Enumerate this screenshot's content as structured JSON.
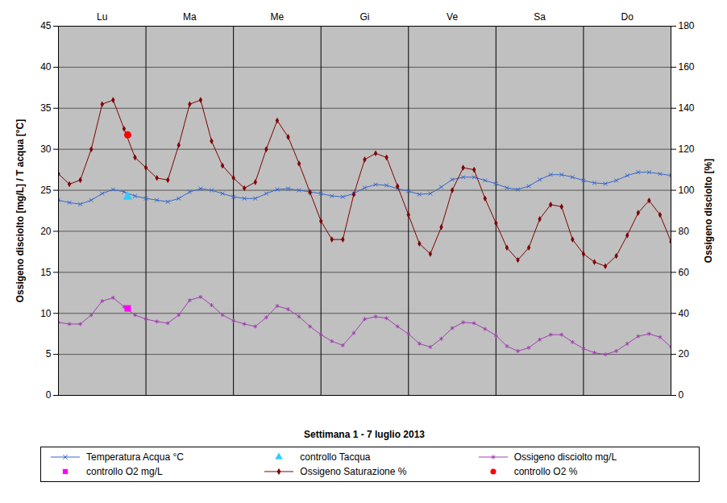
{
  "chart_data": {
    "type": "line",
    "x_label": "Settimana  1 - 7  luglio 2013",
    "y_label": "Ossigeno disciolto [mg/L] / T acqua [°C]",
    "y2_label": "Ossigeno disciolto [%]",
    "x": [
      0,
      3,
      6,
      9,
      12,
      15,
      18,
      21,
      24,
      27,
      30,
      33,
      36,
      39,
      42,
      45,
      48,
      51,
      54,
      57,
      60,
      63,
      66,
      69,
      72,
      75,
      78,
      81,
      84,
      87,
      90,
      93,
      96,
      99,
      102,
      105,
      108,
      111,
      114,
      117,
      120,
      123,
      126,
      129,
      132,
      135,
      138,
      141,
      144,
      147,
      150,
      153,
      156,
      159,
      162,
      165,
      168
    ],
    "xlim": [
      0,
      168
    ],
    "xticks": [
      {
        "value": 12,
        "label": "Lu"
      },
      {
        "value": 36,
        "label": "Ma"
      },
      {
        "value": 60,
        "label": "Me"
      },
      {
        "value": 84,
        "label": "Gi"
      },
      {
        "value": 108,
        "label": "Ve"
      },
      {
        "value": 132,
        "label": "Sa"
      },
      {
        "value": 156,
        "label": "Do"
      }
    ],
    "ylim": [
      0,
      45
    ],
    "yticks": [
      0,
      5,
      10,
      15,
      20,
      25,
      30,
      35,
      40,
      45
    ],
    "y2lim": [
      0,
      180
    ],
    "y2ticks": [
      0,
      20,
      40,
      60,
      80,
      100,
      120,
      140,
      160,
      180
    ],
    "grid": true,
    "legend": "bottom",
    "series": [
      {
        "name": "Temperatura Acqua °C",
        "type": "line",
        "color": "#3366cc",
        "marker": "x",
        "values": [
          23.8,
          23.5,
          23.3,
          23.8,
          24.6,
          25.1,
          24.8,
          24.3,
          24.0,
          23.8,
          23.6,
          24.0,
          24.8,
          25.2,
          25.0,
          24.6,
          24.2,
          24.0,
          24.0,
          24.6,
          25.1,
          25.2,
          25.0,
          24.8,
          24.6,
          24.3,
          24.2,
          24.6,
          25.3,
          25.7,
          25.6,
          25.2,
          24.9,
          24.5,
          24.6,
          25.4,
          26.3,
          26.6,
          26.6,
          26.2,
          25.8,
          25.3,
          25.1,
          25.5,
          26.3,
          26.9,
          26.9,
          26.6,
          26.2,
          25.9,
          25.8,
          26.2,
          26.8,
          27.2,
          27.2,
          27.0,
          26.8
        ]
      },
      {
        "name": "controllo Tacqua",
        "type": "scatter",
        "color": "#33ccff",
        "marker": "triangle",
        "x": [
          19
        ],
        "values": [
          24.2
        ]
      },
      {
        "name": "Ossigeno disciolto mg/L",
        "type": "line",
        "color": "#a040b0",
        "marker": "asterisk",
        "values": [
          8.9,
          8.7,
          8.7,
          9.8,
          11.5,
          11.9,
          10.8,
          9.8,
          9.3,
          9.0,
          8.8,
          9.8,
          11.6,
          12.0,
          11.0,
          9.8,
          9.1,
          8.7,
          8.4,
          9.5,
          10.9,
          10.5,
          9.6,
          8.4,
          7.4,
          6.6,
          6.1,
          7.6,
          9.3,
          9.6,
          9.4,
          8.4,
          7.5,
          6.3,
          5.9,
          6.9,
          8.2,
          8.9,
          8.8,
          8.1,
          7.3,
          6.0,
          5.4,
          5.8,
          6.8,
          7.4,
          7.4,
          6.5,
          5.7,
          5.2,
          5.0,
          5.4,
          6.3,
          7.2,
          7.5,
          7.1,
          5.9
        ]
      },
      {
        "name": "controllo O2 mg/L",
        "type": "scatter",
        "color": "#ff00ff",
        "marker": "square",
        "x": [
          19
        ],
        "values": [
          10.6
        ]
      },
      {
        "name": "Ossigeno Saturazione %",
        "type": "line",
        "color": "#800000",
        "marker": "diamond",
        "axis": "y2",
        "values": [
          108,
          103,
          105,
          120,
          142,
          144,
          130,
          116,
          111,
          106,
          105,
          122,
          142,
          144,
          124,
          112,
          106,
          101,
          104,
          120,
          134,
          126,
          113,
          99,
          85,
          76,
          76,
          98,
          115,
          118,
          116,
          102,
          88,
          74,
          69,
          82,
          100,
          111,
          110,
          96,
          84,
          72,
          66,
          72,
          86,
          93,
          92,
          76,
          69,
          65,
          63,
          68,
          78,
          89,
          95,
          88,
          75
        ]
      },
      {
        "name": "controllo O2 %",
        "type": "scatter",
        "color": "#ff0000",
        "marker": "circle",
        "axis": "y2",
        "x": [
          19
        ],
        "values": [
          127
        ]
      }
    ]
  }
}
